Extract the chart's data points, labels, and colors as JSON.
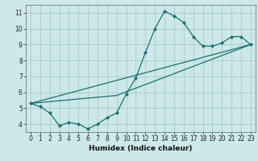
{
  "title": "",
  "xlabel": "Humidex (Indice chaleur)",
  "ylabel": "",
  "background_color": "#cce8e8",
  "grid_color": "#aacccc",
  "line_color": "#1a7070",
  "xlim": [
    -0.5,
    23.5
  ],
  "ylim": [
    3.5,
    11.5
  ],
  "xticks": [
    0,
    1,
    2,
    3,
    4,
    5,
    6,
    7,
    8,
    9,
    10,
    11,
    12,
    13,
    14,
    15,
    16,
    17,
    18,
    19,
    20,
    21,
    22,
    23
  ],
  "yticks": [
    4,
    5,
    6,
    7,
    8,
    9,
    10,
    11
  ],
  "curve1_x": [
    0,
    1,
    2,
    3,
    4,
    5,
    6,
    7,
    8,
    9,
    10,
    11,
    12,
    13,
    14,
    15,
    16,
    17,
    18,
    19,
    20,
    21,
    22,
    23
  ],
  "curve1_y": [
    5.3,
    5.1,
    4.7,
    3.9,
    4.1,
    4.0,
    3.7,
    4.0,
    4.4,
    4.7,
    5.9,
    6.9,
    8.5,
    10.0,
    11.1,
    10.8,
    10.4,
    9.5,
    8.9,
    8.9,
    9.1,
    9.5,
    9.5,
    9.0
  ],
  "curve2_x": [
    0,
    23
  ],
  "curve2_y": [
    5.3,
    9.0
  ],
  "curve3_x": [
    0,
    9,
    23
  ],
  "curve3_y": [
    5.3,
    5.8,
    9.0
  ],
  "marker_size": 2.5,
  "tick_fontsize": 5.5,
  "xlabel_fontsize": 6.5
}
